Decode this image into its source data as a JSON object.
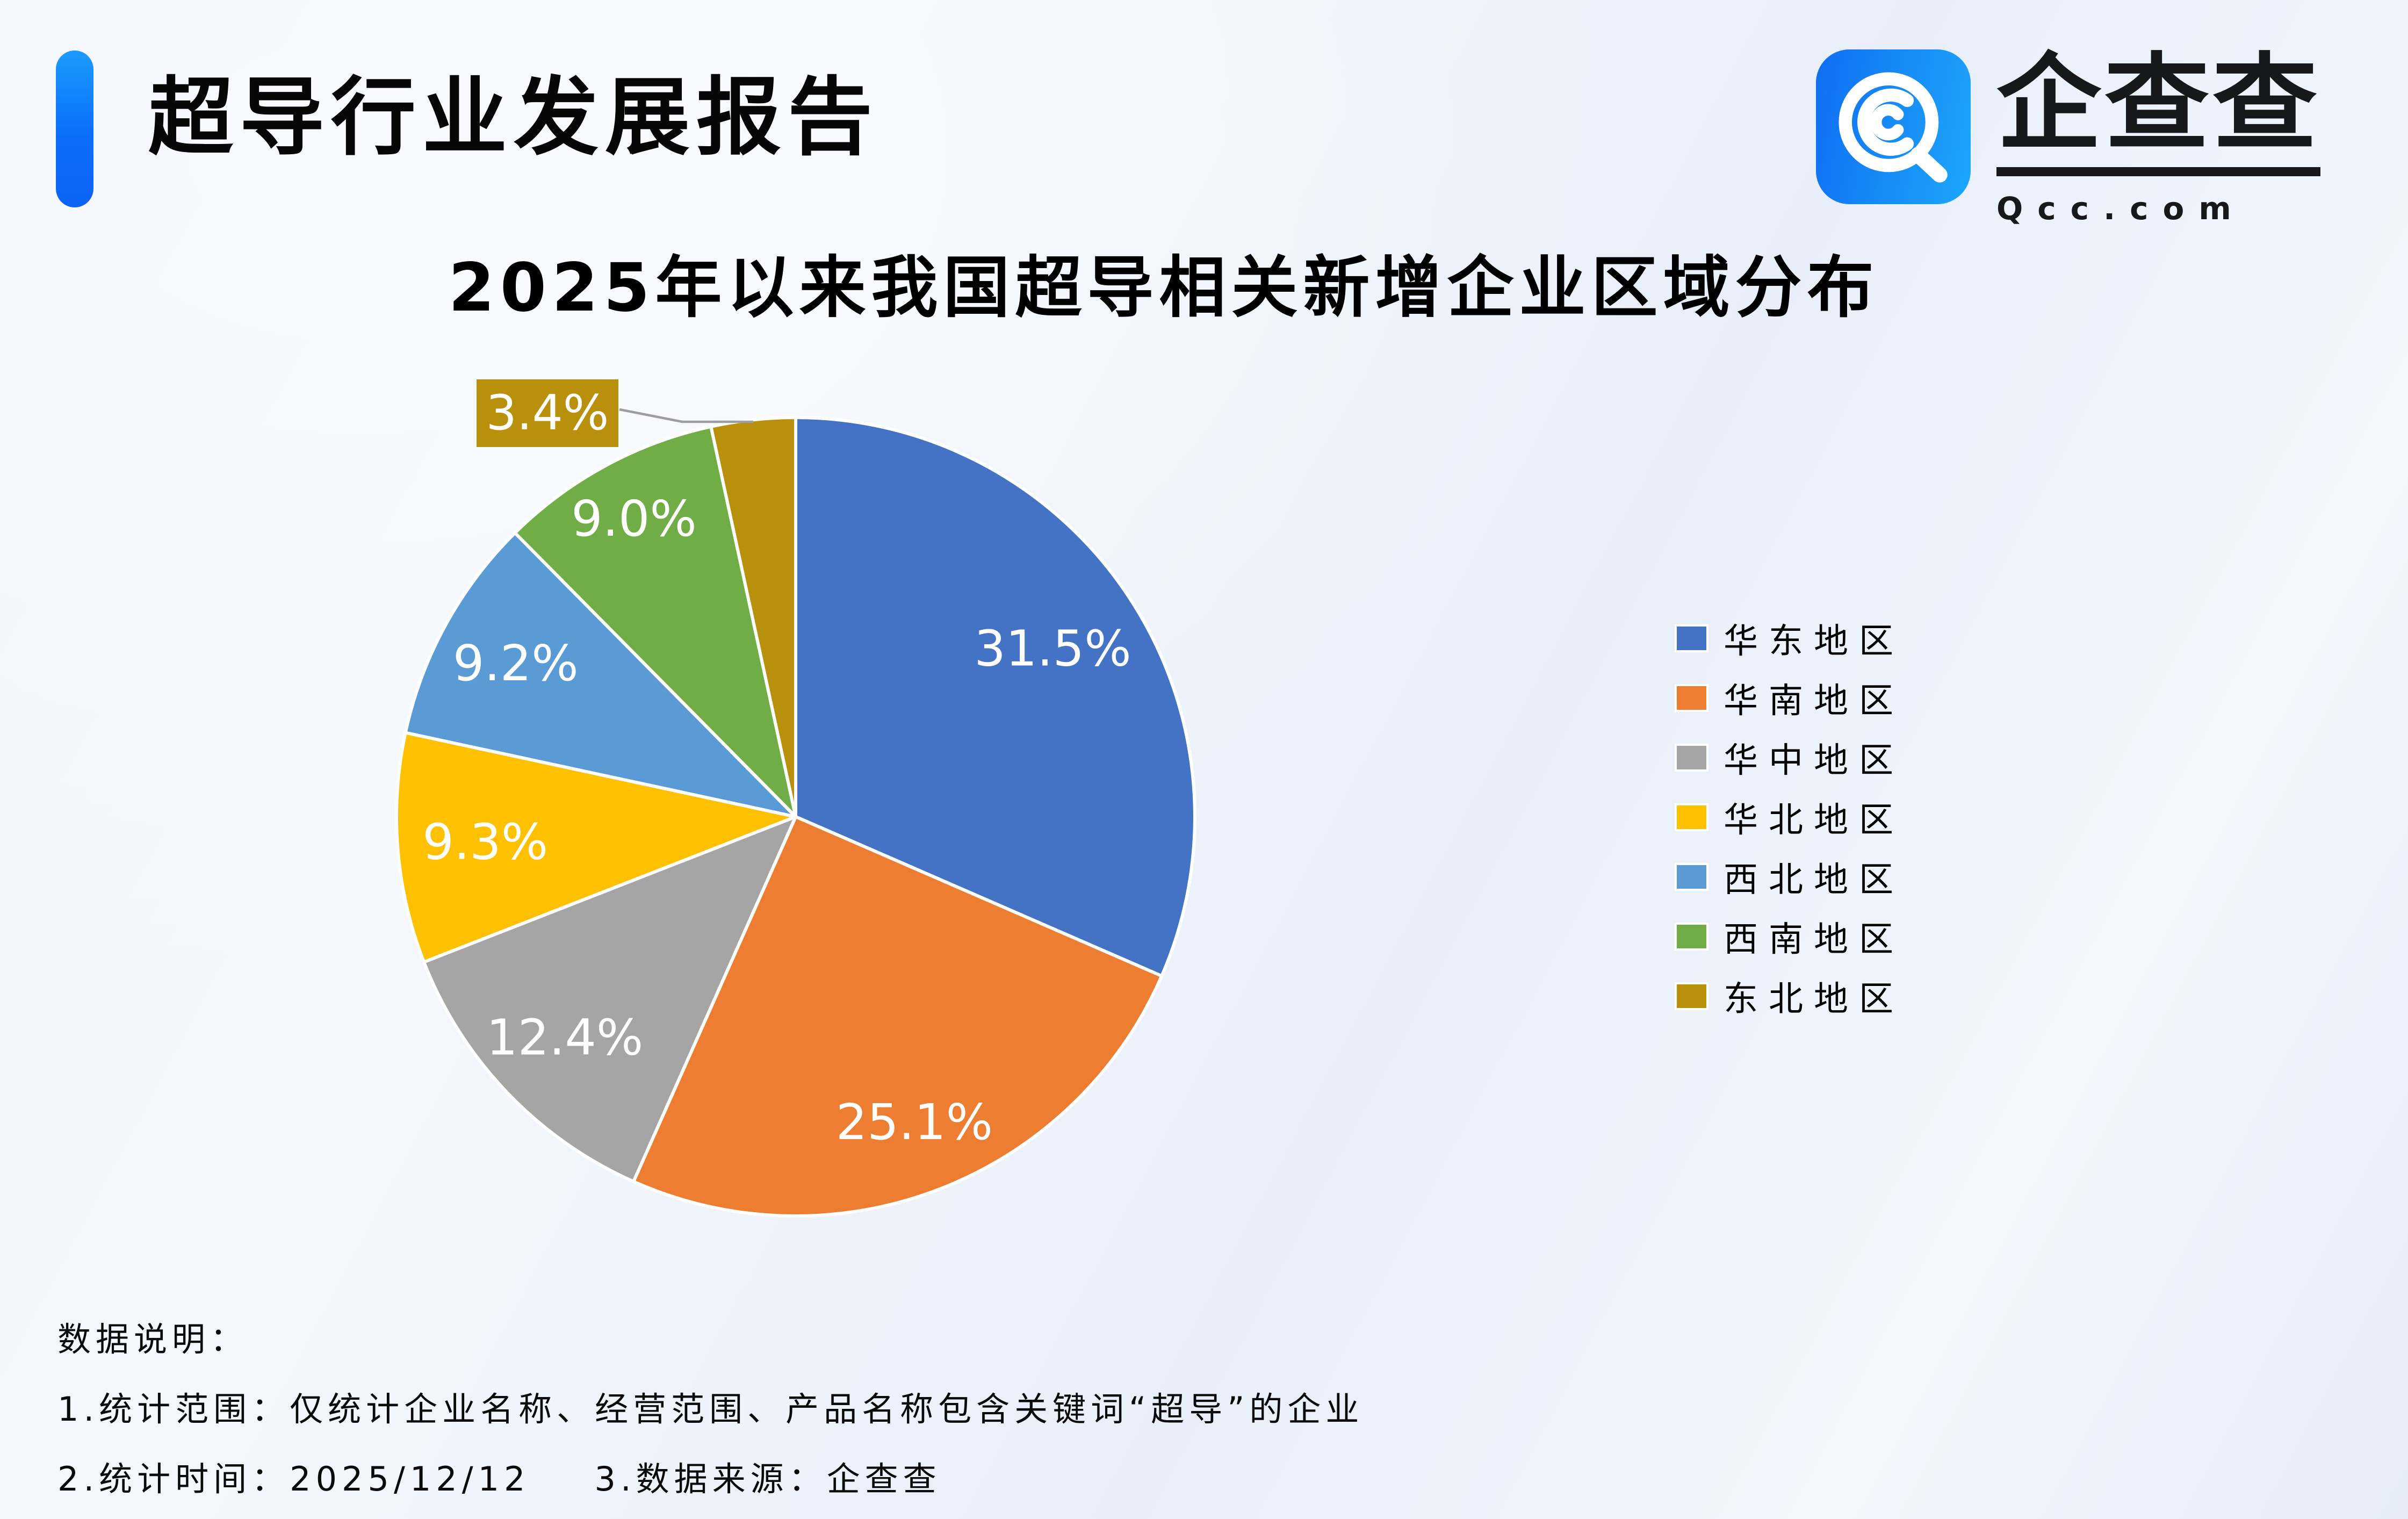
{
  "header": {
    "title": "超导行业发展报告",
    "logo": {
      "text": "企查查",
      "domain": "Qcc.com",
      "icon": "qcc-magnifier-icon",
      "icon_color": "#1285f6"
    }
  },
  "chart_data": {
    "type": "pie",
    "title": "2025年以来我国超导相关新增企业区域分布",
    "unit": "percent",
    "start_angle_deg": 0,
    "direction": "clockwise",
    "legend_position": "right",
    "series": [
      {
        "name": "华东地区",
        "value": 31.5,
        "label": "31.5%",
        "color": "#4472C4"
      },
      {
        "name": "华南地区",
        "value": 25.1,
        "label": "25.1%",
        "color": "#ED7D31"
      },
      {
        "name": "华中地区",
        "value": 12.4,
        "label": "12.4%",
        "color": "#A5A5A5"
      },
      {
        "name": "华北地区",
        "value": 9.3,
        "label": "9.3%",
        "color": "#FFC000"
      },
      {
        "name": "西北地区",
        "value": 9.2,
        "label": "9.2%",
        "color": "#5B9BD5"
      },
      {
        "name": "西南地区",
        "value": 9.0,
        "label": "9.0%",
        "color": "#70AD47"
      },
      {
        "name": "东北地区",
        "value": 3.4,
        "label": "3.4%",
        "color": "#B8900B"
      }
    ],
    "callout": {
      "label": "3.4%",
      "series": "东北地区",
      "leader_line_color": "#9e9e9e"
    },
    "slice_label_color": "#ffffff",
    "slice_border_color": "#ffffff"
  },
  "footnotes": {
    "heading": "数据说明：",
    "line1": "1.统计范围：仅统计企业名称、经营范围、产品名称包含关键词“超导”的企业",
    "line2_part1": "2.统计时间：2025/12/12",
    "line2_part2": "3.数据来源：企查查"
  }
}
